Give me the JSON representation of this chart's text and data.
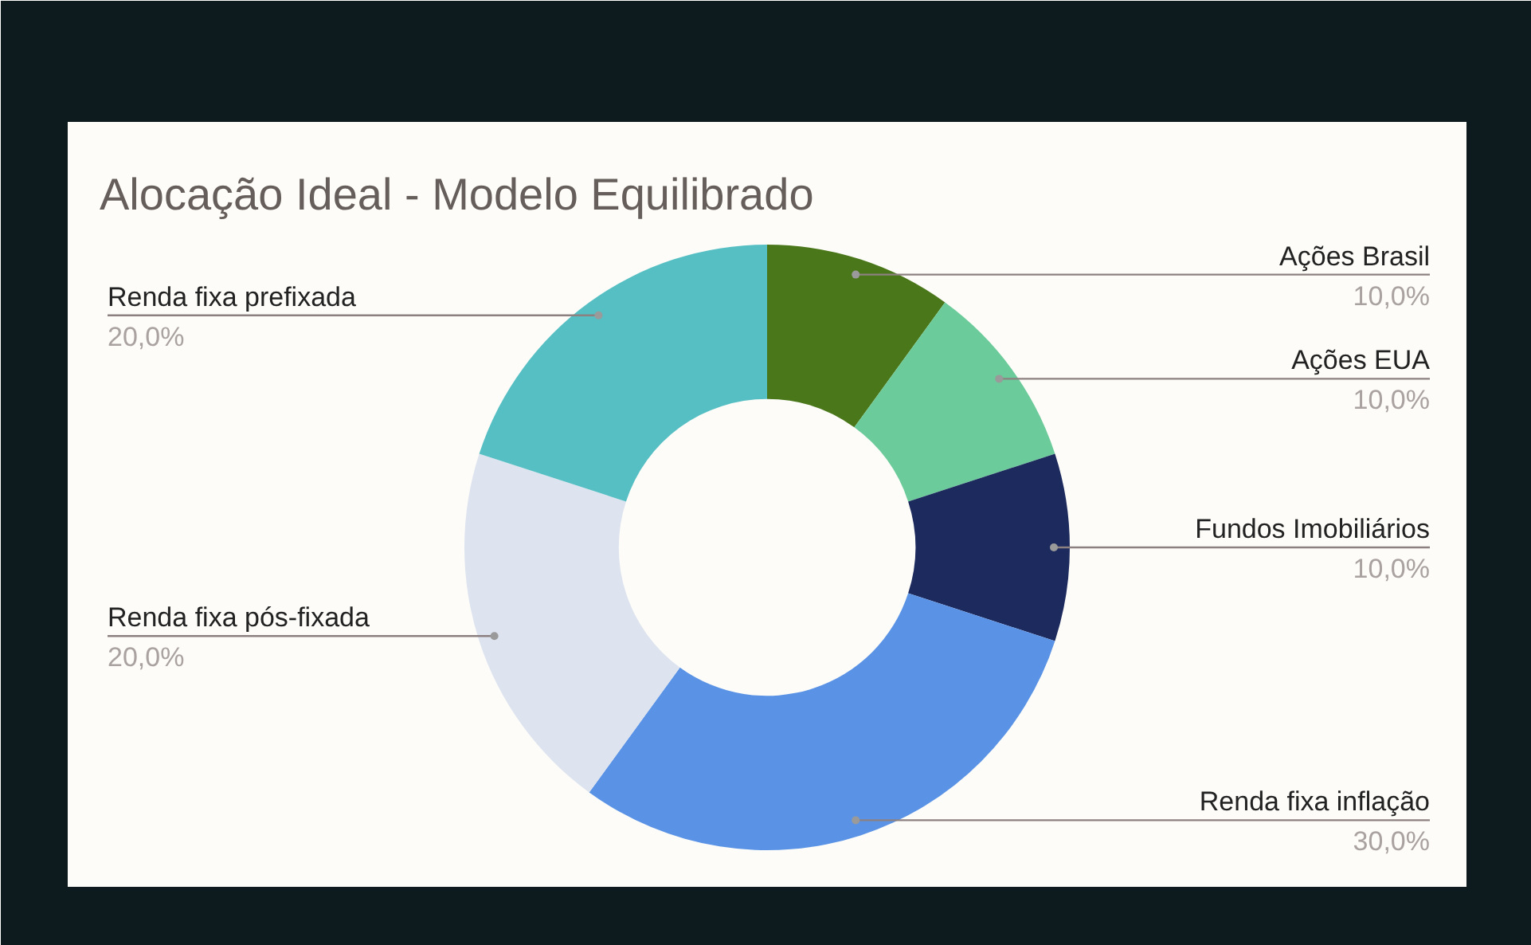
{
  "chart_data": {
    "type": "donut",
    "title": "Alocação Ideal - Modelo Equilibrado",
    "categories": [
      "Ações Brasil",
      "Ações EUA",
      "Fundos Imobiliários",
      "Renda fixa inflação",
      "Renda fixa pós-fixada",
      "Renda fixa prefixada"
    ],
    "values": [
      10,
      10,
      10,
      30,
      20,
      20
    ],
    "colors": [
      "#4a771a",
      "#6ccb9a",
      "#1d2a5e",
      "#5a93e6",
      "#dde4ef",
      "#56bfc4"
    ],
    "value_labels": [
      "10,0%",
      "10,0%",
      "10,0%",
      "30,0%",
      "20,0%",
      "20,0%"
    ]
  }
}
